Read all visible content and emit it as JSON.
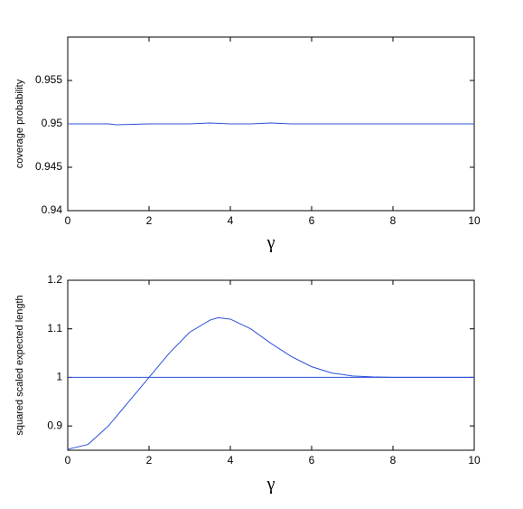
{
  "chart_data": [
    {
      "type": "line",
      "xlabel": "γ",
      "ylabel": "coverage probability",
      "xlim": [
        0,
        10
      ],
      "ylim": [
        0.94,
        0.96
      ],
      "xticks": [
        0,
        2,
        4,
        6,
        8,
        10
      ],
      "yticks": [
        0.94,
        0.945,
        0.95,
        0.955
      ],
      "series": [
        {
          "color": "#2b4fd8",
          "x": [
            0,
            1,
            1.2,
            2,
            3,
            3.5,
            4,
            4.5,
            5,
            5.5,
            6,
            7,
            8,
            9,
            10
          ],
          "values": [
            0.95,
            0.95,
            0.9499,
            0.95,
            0.95,
            0.9501,
            0.95,
            0.95,
            0.9501,
            0.95,
            0.95,
            0.95,
            0.95,
            0.95,
            0.95
          ]
        }
      ]
    },
    {
      "type": "line",
      "xlabel": "γ",
      "ylabel": "squared scaled expected length",
      "xlim": [
        0,
        10
      ],
      "ylim": [
        0.85,
        1.2
      ],
      "xticks": [
        0,
        2,
        4,
        6,
        8,
        10
      ],
      "yticks": [
        0.9,
        1,
        1.1,
        1.2
      ],
      "series": [
        {
          "color": "#2b4fd8",
          "x": [
            0,
            10
          ],
          "values": [
            1,
            1
          ]
        },
        {
          "color": "#2b4fd8",
          "x": [
            0,
            0.5,
            1,
            1.5,
            2,
            2.5,
            3,
            3.5,
            3.7,
            4,
            4.5,
            5,
            5.5,
            6,
            6.5,
            7,
            7.5,
            8,
            9,
            10
          ],
          "values": [
            0.852,
            0.862,
            0.9,
            0.95,
            1.0,
            1.05,
            1.093,
            1.118,
            1.123,
            1.12,
            1.1,
            1.07,
            1.043,
            1.022,
            1.009,
            1.003,
            1.001,
            1.0,
            1.0,
            1.0
          ]
        }
      ]
    }
  ]
}
